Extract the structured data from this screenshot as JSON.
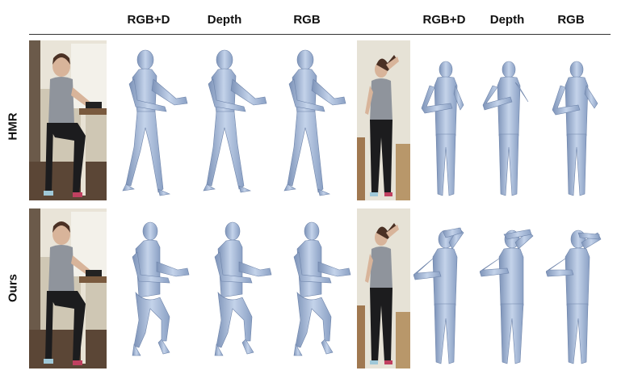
{
  "column_headers_left": [
    "RGB+D",
    "Depth",
    "RGB"
  ],
  "column_headers_right": [
    "RGB+D",
    "Depth",
    "RGB"
  ],
  "row_labels": [
    "HMR",
    "Ours"
  ],
  "colors": {
    "mesh_fill": "#a9bddb",
    "mesh_shadow": "#7d93b8",
    "mesh_highlight": "#dfe8f5",
    "photo_wall": "#e9e4d8",
    "photo_shirt": "#8f949c",
    "photo_pants": "#1c1c1e"
  }
}
